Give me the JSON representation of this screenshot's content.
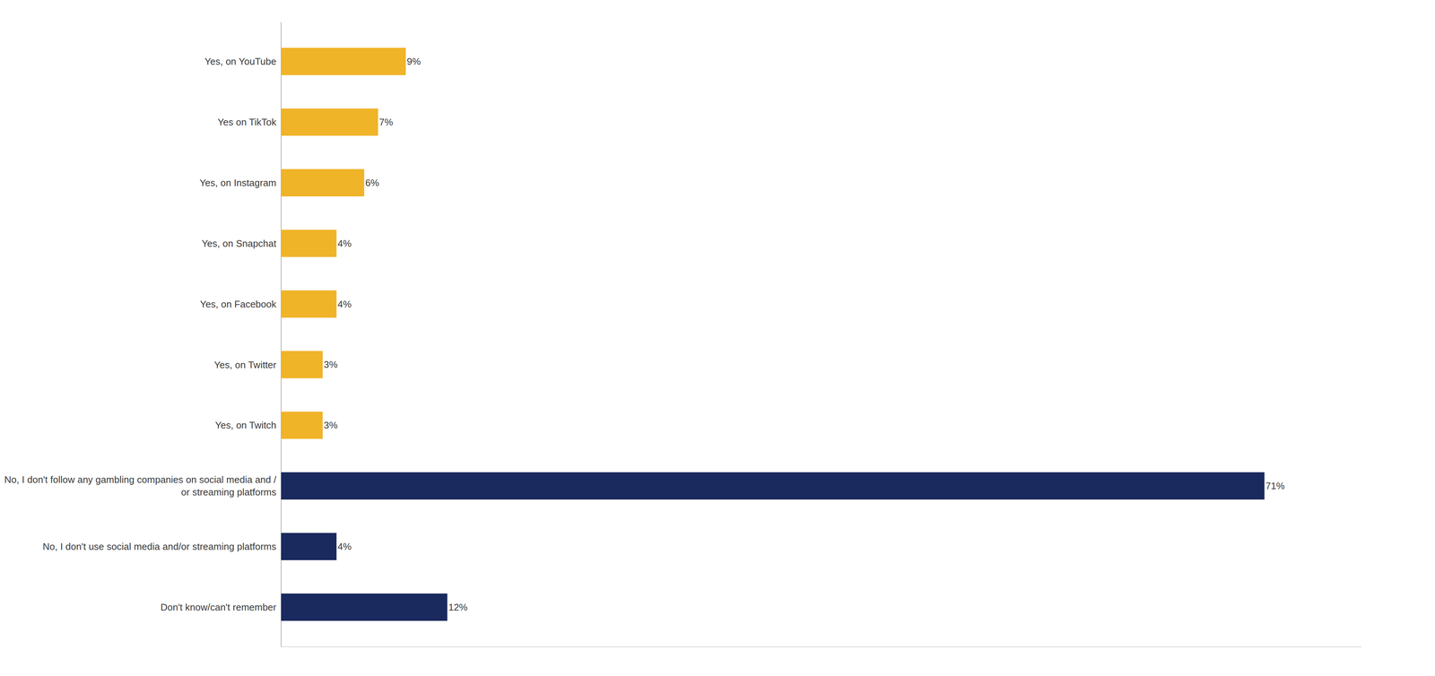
{
  "chart_data": {
    "type": "bar",
    "orientation": "horizontal",
    "categories": [
      "Don't know/can't remember",
      "No, I don't use social media and/or streaming platforms",
      "No, I don't follow any gambling companies on social media and /\nor streaming platforms",
      "Yes, on Twitch",
      "Yes, on Twitter",
      "Yes, on Facebook",
      "Yes, on Snapchat",
      "Yes, on Instagram",
      "Yes on TikTok",
      "Yes, on YouTube"
    ],
    "values": [
      12,
      4,
      71,
      3,
      3,
      4,
      4,
      6,
      7,
      9
    ],
    "value_labels": [
      "12%",
      "4%",
      "71%",
      "3%",
      "3%",
      "4%",
      "4%",
      "6%",
      "7%",
      "9%"
    ],
    "colors": [
      "#1b2a5e",
      "#1b2a5e",
      "#1b2a5e",
      "#f0b429",
      "#f0b429",
      "#f0b429",
      "#f0b429",
      "#f0b429",
      "#f0b429",
      "#f0b429"
    ],
    "xlim": [
      0,
      78
    ],
    "data_labels": true,
    "tick_labels": "y",
    "grid": false
  }
}
